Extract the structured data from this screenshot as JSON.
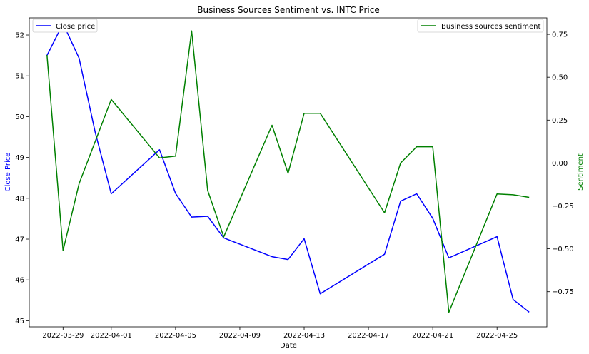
{
  "chart_data": {
    "type": "line",
    "title": "Business Sources Sentiment vs. INTC Price",
    "xlabel": "Date",
    "ylabel_left": "Close Price",
    "ylabel_right": "Sentiment",
    "colors": {
      "left": "#0000ff",
      "right": "#008000"
    },
    "x_ticks": [
      "2022-03-29",
      "2022-04-01",
      "2022-04-05",
      "2022-04-09",
      "2022-04-13",
      "2022-04-17",
      "2022-04-21",
      "2022-04-25"
    ],
    "y_left_ticks": [
      "45",
      "46",
      "47",
      "48",
      "49",
      "50",
      "51",
      "52"
    ],
    "y_right_ticks": [
      "−0.75",
      "−0.50",
      "−0.25",
      "0.00",
      "0.25",
      "0.50",
      "0.75"
    ],
    "xlim": [
      "2022-03-26T21:36",
      "2022-04-28T02:24"
    ],
    "ylim_left": [
      44.85,
      52.42
    ],
    "ylim_right": [
      -0.955,
      0.846
    ],
    "series": [
      {
        "name": "Close price",
        "axis": "left",
        "color": "#0000ff",
        "legend": "top-left",
        "x": [
          "2022-03-28",
          "2022-03-29",
          "2022-03-30",
          "2022-03-31",
          "2022-04-01",
          "2022-04-04",
          "2022-04-05",
          "2022-04-06",
          "2022-04-07",
          "2022-04-08",
          "2022-04-11",
          "2022-04-12",
          "2022-04-13",
          "2022-04-14",
          "2022-04-18",
          "2022-04-19",
          "2022-04-20",
          "2022-04-21",
          "2022-04-22",
          "2022-04-25",
          "2022-04-26",
          "2022-04-27"
        ],
        "values": [
          51.5,
          52.28,
          51.43,
          49.62,
          48.11,
          49.19,
          48.12,
          47.54,
          47.56,
          47.03,
          46.57,
          46.5,
          47.01,
          45.66,
          46.63,
          47.93,
          48.11,
          47.51,
          46.54,
          47.06,
          45.52,
          45.21
        ]
      },
      {
        "name": "Business sources sentiment",
        "axis": "right",
        "color": "#008000",
        "legend": "top-right",
        "x": [
          "2022-03-28",
          "2022-03-29",
          "2022-03-30",
          "2022-04-01",
          "2022-04-04",
          "2022-04-05",
          "2022-04-06",
          "2022-04-07",
          "2022-04-08",
          "2022-04-11",
          "2022-04-12",
          "2022-04-13",
          "2022-04-14",
          "2022-04-18",
          "2022-04-19",
          "2022-04-20",
          "2022-04-21",
          "2022-04-22",
          "2022-04-25",
          "2022-04-26",
          "2022-04-27"
        ],
        "values": [
          0.63,
          -0.51,
          -0.12,
          0.37,
          0.03,
          0.04,
          0.77,
          -0.16,
          -0.43,
          0.22,
          -0.06,
          0.29,
          0.29,
          -0.29,
          0.0,
          0.095,
          0.095,
          -0.87,
          -0.18,
          -0.185,
          -0.2
        ]
      }
    ]
  }
}
